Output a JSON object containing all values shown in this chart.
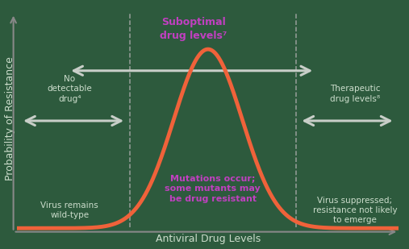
{
  "xlabel": "Antiviral Drug Levels",
  "ylabel": "Probability of Resistance",
  "background_color": "#2d5a3d",
  "curve_color": "#f0623a",
  "curve_linewidth": 3.5,
  "dashed_line_color": "#aaaaaa",
  "dashed_line_x1": 0.295,
  "dashed_line_x2": 0.73,
  "arrow_color": "#c8cec8",
  "text_color_gray": "#ccddcc",
  "text_color_purple": "#c040c0",
  "suboptimal_label": "Suboptimal\ndrug levels⁷",
  "no_drug_label": "No\ndetectable\ndrug⁴",
  "therapeutic_label": "Therapeutic\ndrug levels⁸",
  "wild_type_label": "Virus remains\nwild-type",
  "mutations_label": "Mutations occur;\nsome mutants may\nbe drug resistant",
  "suppressed_label": "Virus suppressed;\nresistance not likely\nto emerge",
  "gaussian_mu": 0.5,
  "gaussian_sigma": 0.09,
  "xlim": [
    0.0,
    1.0
  ],
  "ylim": [
    -0.02,
    1.25
  ],
  "axis_color": "#888888",
  "xlabel_color": "#ccddcc",
  "ylabel_color": "#ccddcc"
}
